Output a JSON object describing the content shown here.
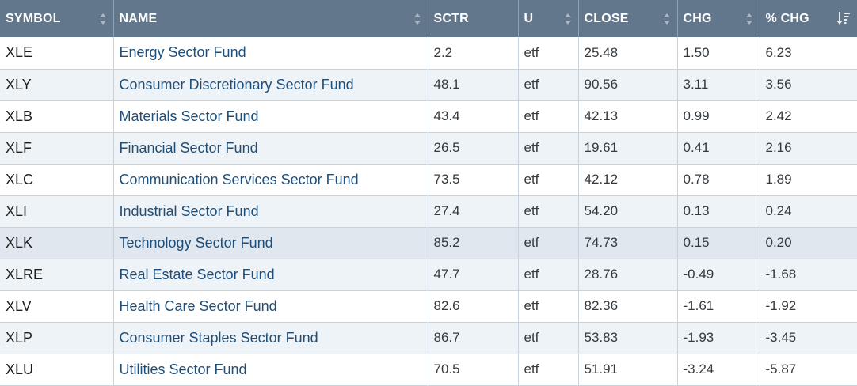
{
  "columns": {
    "symbol": "SYMBOL",
    "name": "NAME",
    "sctr": "SCTR",
    "u": "U",
    "close": "CLOSE",
    "chg": "CHG",
    "pct_chg": "% CHG"
  },
  "icons": {
    "sort": "sort-updown-icon",
    "sort_desc": "sort-descending-icon"
  },
  "colors": {
    "header_bg": "#62778c",
    "link": "#1f4e79",
    "alt_row": "#eef3f7",
    "highlight_row": "#e1e7ee"
  },
  "rows": [
    {
      "symbol": "XLE",
      "name": "Energy Sector Fund",
      "sctr": "2.2",
      "u": "etf",
      "close": "25.48",
      "chg": "1.50",
      "pct_chg": "6.23"
    },
    {
      "symbol": "XLY",
      "name": "Consumer Discretionary Sector Fund",
      "sctr": "48.1",
      "u": "etf",
      "close": "90.56",
      "chg": "3.11",
      "pct_chg": "3.56"
    },
    {
      "symbol": "XLB",
      "name": "Materials Sector Fund",
      "sctr": "43.4",
      "u": "etf",
      "close": "42.13",
      "chg": "0.99",
      "pct_chg": "2.42"
    },
    {
      "symbol": "XLF",
      "name": "Financial Sector Fund",
      "sctr": "26.5",
      "u": "etf",
      "close": "19.61",
      "chg": "0.41",
      "pct_chg": "2.16"
    },
    {
      "symbol": "XLC",
      "name": "Communication Services Sector Fund",
      "sctr": "73.5",
      "u": "etf",
      "close": "42.12",
      "chg": "0.78",
      "pct_chg": "1.89"
    },
    {
      "symbol": "XLI",
      "name": "Industrial Sector Fund",
      "sctr": "27.4",
      "u": "etf",
      "close": "54.20",
      "chg": "0.13",
      "pct_chg": "0.24"
    },
    {
      "symbol": "XLK",
      "name": "Technology Sector Fund",
      "sctr": "85.2",
      "u": "etf",
      "close": "74.73",
      "chg": "0.15",
      "pct_chg": "0.20"
    },
    {
      "symbol": "XLRE",
      "name": "Real Estate Sector Fund",
      "sctr": "47.7",
      "u": "etf",
      "close": "28.76",
      "chg": "-0.49",
      "pct_chg": "-1.68"
    },
    {
      "symbol": "XLV",
      "name": "Health Care Sector Fund",
      "sctr": "82.6",
      "u": "etf",
      "close": "82.36",
      "chg": "-1.61",
      "pct_chg": "-1.92"
    },
    {
      "symbol": "XLP",
      "name": "Consumer Staples Sector Fund",
      "sctr": "86.7",
      "u": "etf",
      "close": "53.83",
      "chg": "-1.93",
      "pct_chg": "-3.45"
    },
    {
      "symbol": "XLU",
      "name": "Utilities Sector Fund",
      "sctr": "70.5",
      "u": "etf",
      "close": "51.91",
      "chg": "-3.24",
      "pct_chg": "-5.87"
    }
  ]
}
